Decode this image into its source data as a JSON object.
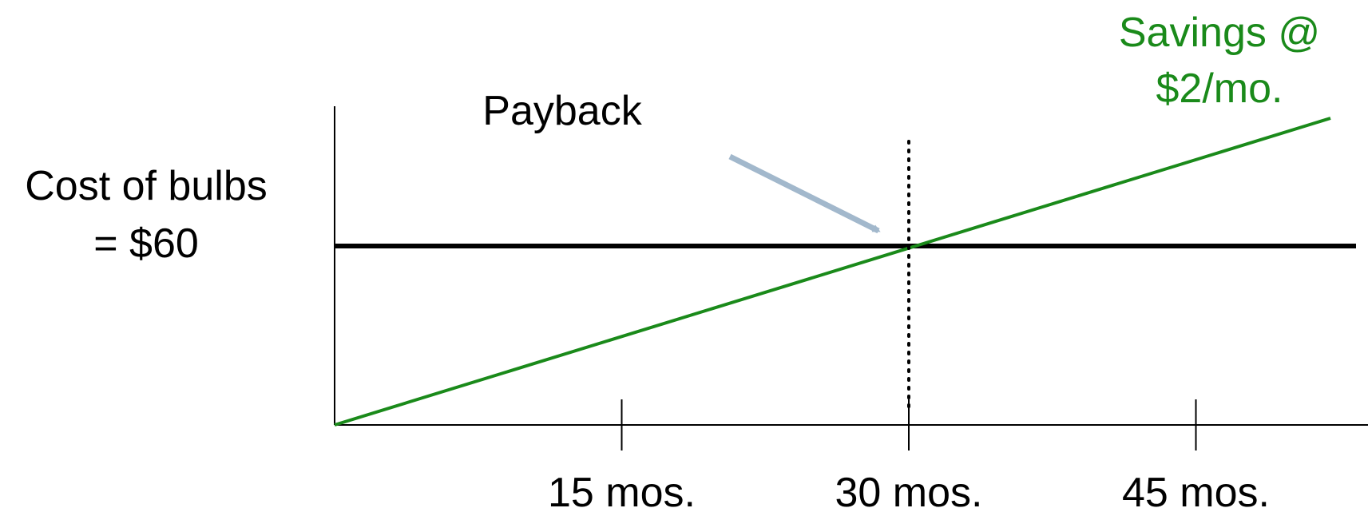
{
  "chart_data": {
    "type": "line",
    "title": "",
    "xlabel": "",
    "ylabel_lines": [
      "Cost of bulbs",
      "= $60"
    ],
    "x_ticks": [
      {
        "value": 15,
        "label": "15 mos."
      },
      {
        "value": 30,
        "label": "30 mos."
      },
      {
        "value": 45,
        "label": "45 mos."
      }
    ],
    "xlim": [
      0,
      53
    ],
    "ylim": [
      0,
      100
    ],
    "cost_line": {
      "y": 60,
      "color": "#000000"
    },
    "savings_line": {
      "label_lines": [
        "Savings @",
        "$2/mo."
      ],
      "color": "#1a8a1a",
      "x": [
        0,
        52
      ],
      "y": [
        0,
        104
      ]
    },
    "payback": {
      "label": "Payback",
      "x": 30,
      "arrow_color": "#a2b8cc"
    }
  }
}
